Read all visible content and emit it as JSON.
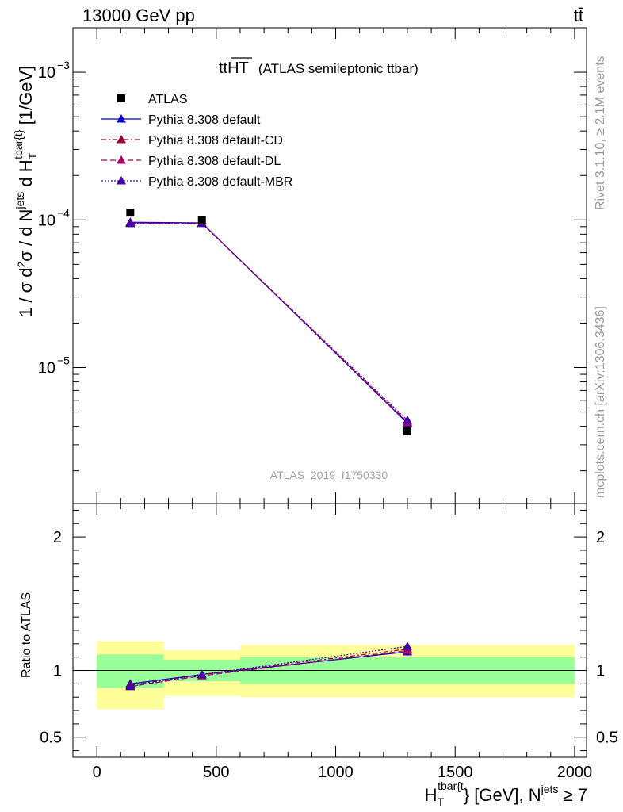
{
  "header": {
    "left_label": "13000 GeV pp",
    "right_label": "tt̄"
  },
  "plot_title": {
    "main": "ttHT",
    "sub": "(ATLAS semileptonic ttbar)"
  },
  "side_labels": {
    "rivet": "Rivet 3.1.10, ≥ 2.1M events",
    "mcplots": "mcplots.cern.ch [arXiv:1306.3436]"
  },
  "watermark": "ATLAS_2019_I1750330",
  "axis_labels": {
    "y_main": "1 / σ d²σ / d Nʲᵉᵗˢ d Hₜ^{tbar{t}} [1/GeV]",
    "y_ratio": "Ratio to ATLAS",
    "x": "Hₜ^{tbar{t}} [GeV], Nʲᵉᵗˢ ≥ 7"
  },
  "chart_data": {
    "type": "line",
    "x_range": [
      -100,
      2050
    ],
    "x_ticks": [
      0,
      500,
      1000,
      1500,
      2000
    ],
    "x_tick_labels": [
      "0",
      "500",
      "1000",
      "1500",
      "2000"
    ],
    "main": {
      "y_scale": "log",
      "y_range": [
        1.2e-06,
        0.002
      ],
      "y_tick_labels": [
        {
          "value": 0.001,
          "base": "10",
          "exp": "−3"
        },
        {
          "value": 0.0001,
          "base": "10",
          "exp": "−4"
        },
        {
          "value": 1e-05,
          "base": "10",
          "exp": "−5"
        }
      ],
      "bins": [
        [
          0,
          280
        ],
        [
          280,
          600
        ],
        [
          600,
          2000
        ]
      ],
      "x": [
        140,
        440,
        1300
      ],
      "data": {
        "name": "ATLAS",
        "color": "#000000",
        "values": [
          0.000112,
          0.0001,
          3.7e-06
        ]
      },
      "series": [
        {
          "name": "Pythia 8.308 default",
          "color": "#0000cc",
          "dash": "",
          "values": [
            9.65e-05,
            9.55e-05,
            4.2e-06
          ]
        },
        {
          "name": "Pythia 8.308 default-CD",
          "color": "#990033",
          "dash": "6,3,2,3",
          "values": [
            9.55e-05,
            9.5e-05,
            4.3e-06
          ]
        },
        {
          "name": "Pythia 8.308 default-DL",
          "color": "#aa0066",
          "dash": "7,4",
          "values": [
            9.5e-05,
            9.5e-05,
            4.25e-06
          ]
        },
        {
          "name": "Pythia 8.308 default-MBR",
          "color": "#4400aa",
          "dash": "2,2",
          "values": [
            9.45e-05,
            9.45e-05,
            4.4e-06
          ]
        }
      ]
    },
    "ratio": {
      "y_scale": "linear",
      "y_range": [
        0.35,
        2.25
      ],
      "y_ticks": [
        0.5,
        1,
        2
      ],
      "y_tick_labels": [
        "0.5",
        "1",
        "2"
      ],
      "reference": 1,
      "bands": [
        {
          "bin": [
            0,
            280
          ],
          "green": [
            0.87,
            1.12
          ],
          "yellow": [
            0.71,
            1.22
          ]
        },
        {
          "bin": [
            280,
            600
          ],
          "green": [
            0.92,
            1.08
          ],
          "yellow": [
            0.81,
            1.15
          ]
        },
        {
          "bin": [
            600,
            2000
          ],
          "green": [
            0.9,
            1.1
          ],
          "yellow": [
            0.8,
            1.19
          ]
        }
      ],
      "x": [
        140,
        440,
        1300
      ],
      "series": [
        {
          "name": "Pythia 8.308 default",
          "values": [
            0.9,
            0.97,
            1.14
          ]
        },
        {
          "name": "Pythia 8.308 default-CD",
          "values": [
            0.89,
            0.97,
            1.16
          ]
        },
        {
          "name": "Pythia 8.308 default-DL",
          "values": [
            0.88,
            0.96,
            1.15
          ]
        },
        {
          "name": "Pythia 8.308 default-MBR",
          "values": [
            0.88,
            0.97,
            1.18
          ]
        }
      ]
    },
    "legend_placement": "top-left",
    "grid": false
  }
}
